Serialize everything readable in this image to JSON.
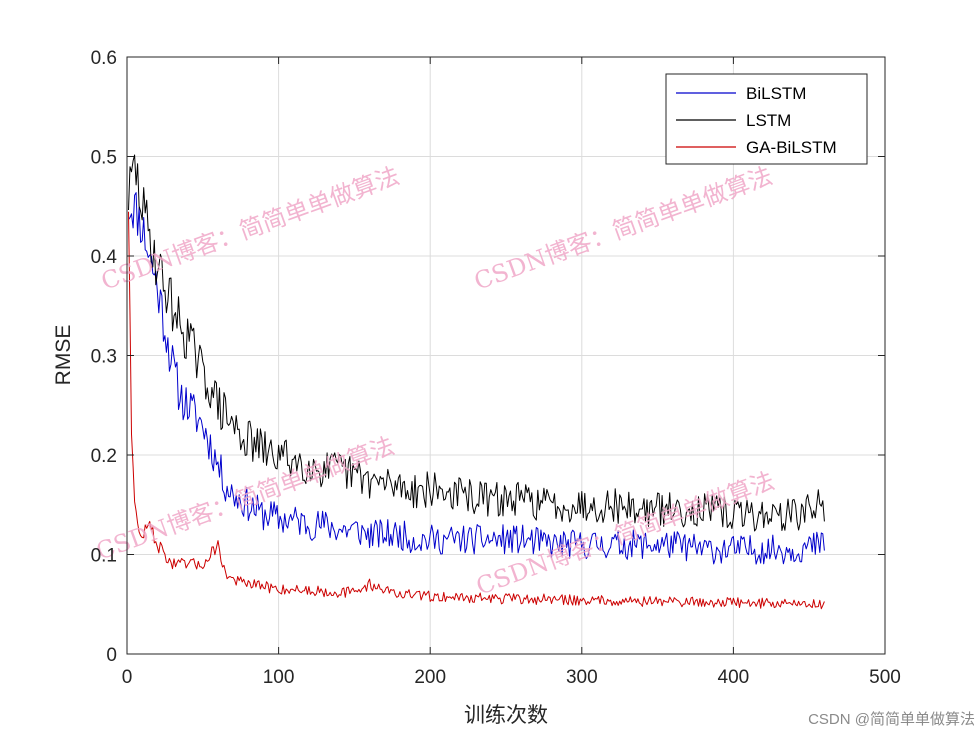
{
  "chart_data": {
    "type": "line",
    "title": "",
    "xlabel": "训练次数",
    "ylabel": "RMSE",
    "xlim": [
      0,
      500
    ],
    "ylim": [
      0,
      0.6
    ],
    "x_ticks": [
      0,
      100,
      200,
      300,
      400,
      500
    ],
    "y_ticks": [
      0,
      0.1,
      0.2,
      0.3,
      0.4,
      0.5,
      0.6
    ],
    "x_tick_labels": [
      "0",
      "100",
      "200",
      "300",
      "400",
      "500"
    ],
    "y_tick_labels": [
      "0",
      "0.1",
      "0.2",
      "0.3",
      "0.4",
      "0.5",
      "0.6"
    ],
    "grid": true,
    "legend_position": "top-right",
    "series": [
      {
        "name": "BiLSTM",
        "color": "#0000cc",
        "x": [
          1,
          5,
          10,
          15,
          20,
          25,
          30,
          35,
          40,
          45,
          50,
          55,
          60,
          65,
          70,
          75,
          80,
          85,
          90,
          95,
          100,
          110,
          120,
          130,
          140,
          150,
          160,
          170,
          180,
          190,
          200,
          220,
          240,
          260,
          280,
          300,
          320,
          340,
          360,
          380,
          400,
          420,
          440,
          460
        ],
        "values": [
          0.45,
          0.45,
          0.43,
          0.4,
          0.37,
          0.33,
          0.29,
          0.26,
          0.25,
          0.24,
          0.23,
          0.21,
          0.19,
          0.17,
          0.16,
          0.155,
          0.15,
          0.145,
          0.14,
          0.14,
          0.135,
          0.135,
          0.13,
          0.13,
          0.125,
          0.125,
          0.12,
          0.12,
          0.12,
          0.115,
          0.115,
          0.115,
          0.115,
          0.115,
          0.11,
          0.11,
          0.11,
          0.11,
          0.11,
          0.105,
          0.105,
          0.105,
          0.105,
          0.11
        ]
      },
      {
        "name": "LSTM",
        "color": "#000000",
        "x": [
          1,
          5,
          10,
          15,
          20,
          25,
          30,
          35,
          40,
          45,
          50,
          55,
          60,
          65,
          70,
          75,
          80,
          85,
          90,
          95,
          100,
          110,
          120,
          130,
          140,
          150,
          160,
          170,
          180,
          190,
          200,
          220,
          240,
          260,
          280,
          300,
          320,
          340,
          360,
          380,
          400,
          420,
          440,
          460
        ],
        "values": [
          0.46,
          0.49,
          0.45,
          0.42,
          0.39,
          0.37,
          0.35,
          0.33,
          0.32,
          0.3,
          0.28,
          0.27,
          0.25,
          0.24,
          0.23,
          0.22,
          0.215,
          0.21,
          0.205,
          0.2,
          0.2,
          0.195,
          0.19,
          0.185,
          0.185,
          0.18,
          0.175,
          0.17,
          0.17,
          0.165,
          0.165,
          0.16,
          0.155,
          0.155,
          0.15,
          0.15,
          0.15,
          0.145,
          0.145,
          0.145,
          0.14,
          0.14,
          0.14,
          0.15
        ]
      },
      {
        "name": "GA-BiLSTM",
        "color": "#cc0000",
        "x": [
          1,
          3,
          5,
          8,
          10,
          15,
          20,
          25,
          30,
          35,
          40,
          45,
          50,
          55,
          60,
          65,
          70,
          80,
          90,
          100,
          110,
          120,
          130,
          140,
          150,
          160,
          180,
          200,
          220,
          240,
          260,
          280,
          300,
          320,
          340,
          360,
          380,
          400,
          420,
          440,
          460
        ],
        "values": [
          0.45,
          0.23,
          0.15,
          0.12,
          0.12,
          0.13,
          0.11,
          0.1,
          0.09,
          0.09,
          0.09,
          0.09,
          0.09,
          0.1,
          0.11,
          0.08,
          0.075,
          0.07,
          0.068,
          0.065,
          0.065,
          0.064,
          0.063,
          0.062,
          0.062,
          0.07,
          0.06,
          0.058,
          0.057,
          0.056,
          0.055,
          0.055,
          0.054,
          0.054,
          0.053,
          0.053,
          0.052,
          0.052,
          0.051,
          0.051,
          0.05
        ]
      }
    ]
  },
  "watermarks": [
    "CSDN博客：简简单单做算法",
    "CSDN博客：简简单单做算法",
    "CSDN博客：简简单单做算法",
    "CSDN博客：简简单单做算法"
  ],
  "footer_credit": "CSDN @简简单单做算法"
}
